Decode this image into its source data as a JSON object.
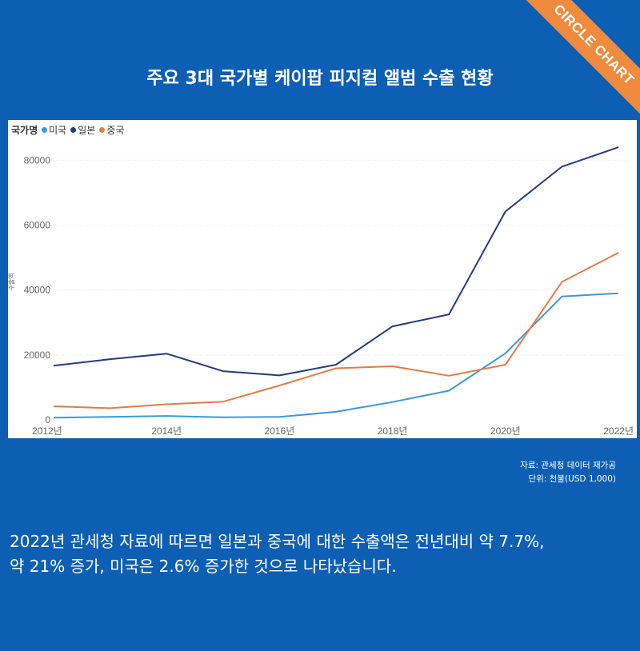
{
  "ribbon": {
    "text": "CIRCLE CHART"
  },
  "title": "주요 3대 국가별 케이팝 피지컬 앨범 수출 현황",
  "chart_data": {
    "type": "line",
    "legend_title": "국가명",
    "ylabel": "수출액",
    "x": [
      2012,
      2013,
      2014,
      2015,
      2016,
      2017,
      2018,
      2019,
      2020,
      2021,
      2022
    ],
    "x_ticks": [
      2012,
      2014,
      2016,
      2018,
      2020,
      2022
    ],
    "x_tick_labels": [
      "2012년",
      "2014년",
      "2016년",
      "2018년",
      "2020년",
      "2022년"
    ],
    "y_ticks": [
      0,
      20000,
      40000,
      60000,
      80000
    ],
    "y_tick_labels": [
      "0",
      "20000",
      "40000",
      "60000",
      "80000"
    ],
    "ylim": [
      0,
      85000
    ],
    "grid": true,
    "legend_position": "top-left",
    "series": [
      {
        "name": "미국",
        "color": "#3a9ad9",
        "values": [
          700,
          900,
          1200,
          800,
          900,
          2500,
          5500,
          9000,
          20500,
          38000,
          39000
        ]
      },
      {
        "name": "일본",
        "color": "#253b80",
        "values": [
          16700,
          18700,
          20400,
          15000,
          13700,
          17000,
          28800,
          32500,
          64200,
          78000,
          84000
        ]
      },
      {
        "name": "중국",
        "color": "#e47c46",
        "values": [
          4200,
          3600,
          4800,
          5600,
          10600,
          15900,
          16500,
          13600,
          17000,
          42500,
          51500
        ]
      }
    ]
  },
  "source": {
    "line1": "자료: 관세청 데이터 재가공",
    "line2": "단위: 천불(USD 1,000)"
  },
  "body": {
    "line1": "2022년 관세청 자료에 따르면  일본과 중국에 대한 수출액은 전년대비 약 7.7%,",
    "line2": "약 21% 증가,  미국은 2.6% 증가한 것으로 나타났습니다."
  }
}
